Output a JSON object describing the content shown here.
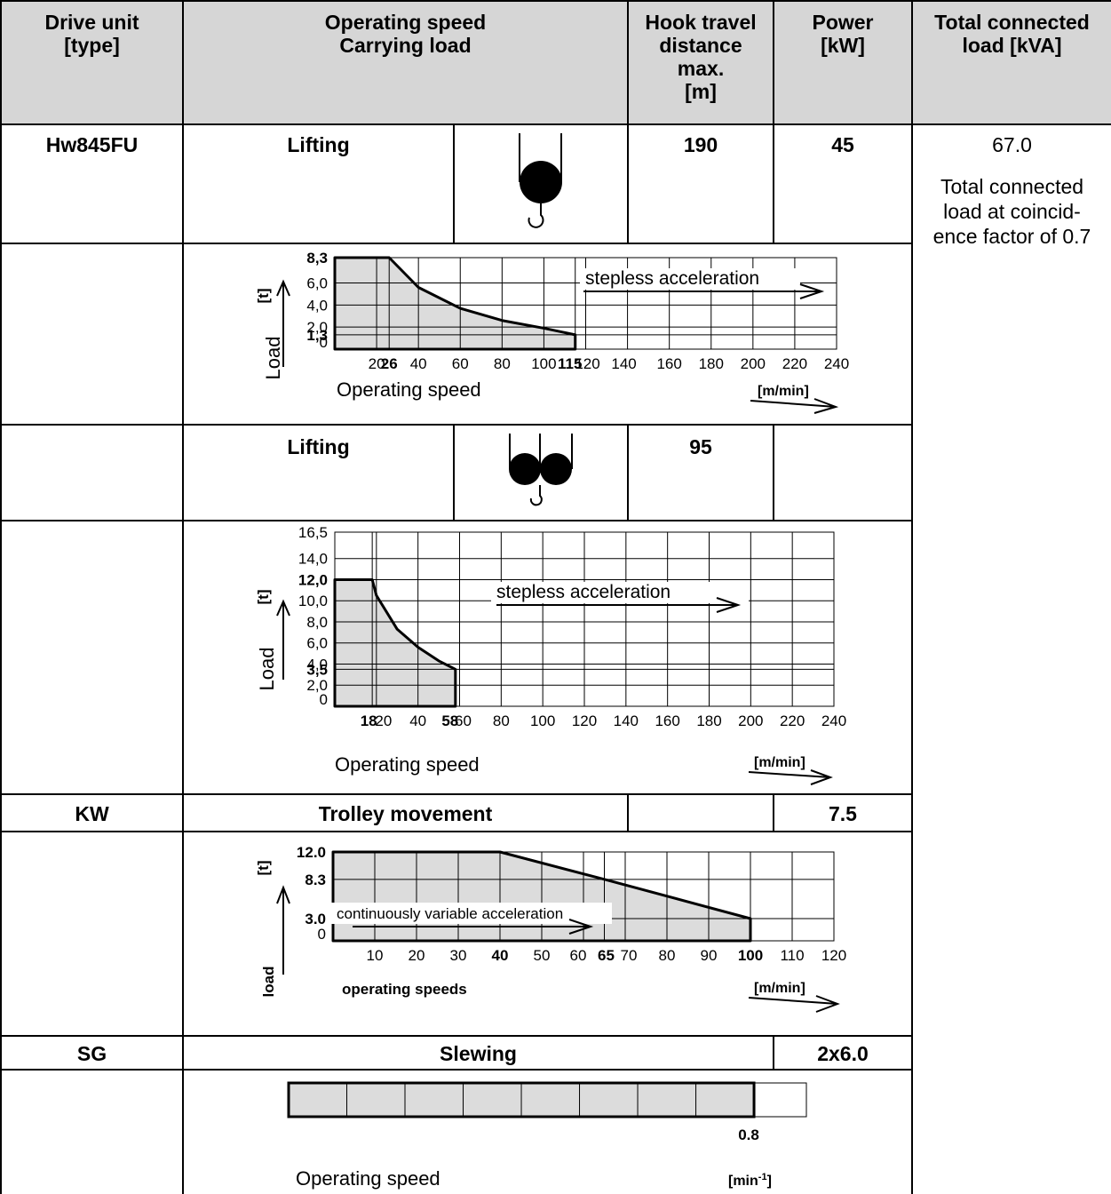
{
  "header": {
    "drive_unit": [
      "Drive unit",
      "[type]"
    ],
    "operating_speed": [
      "Operating speed",
      "Carrying load"
    ],
    "hook_travel": [
      "Hook travel",
      "distance",
      "max.",
      "[m]"
    ],
    "power": [
      "Power",
      "[kW]"
    ],
    "total_load": [
      "Total connected",
      "load [kVA]"
    ]
  },
  "rows": {
    "hw": {
      "type": "Hw845FU",
      "label": "Lifting",
      "hook_travel": "190",
      "power": "45"
    },
    "hw2": {
      "label": "Lifting",
      "hook_travel": "95"
    },
    "kw": {
      "type": "KW",
      "label": "Trolley movement",
      "power": "7.5"
    },
    "sg": {
      "type": "SG",
      "label": "Slewing",
      "power": "2x6.0"
    }
  },
  "total": {
    "value": "67.0",
    "note": [
      "Total connected",
      "load at coincid-",
      "ence factor of 0.7"
    ]
  },
  "icons": [
    "single-hook-icon",
    "double-hook-icon"
  ],
  "chart_data": [
    {
      "type": "area",
      "xlabel": "Operating speed",
      "ylabel": "Load",
      "yunit": "[t]",
      "xunit": "[m/min]",
      "annotation": "stepless acceleration",
      "x_ticks": [
        "20",
        "26",
        "40",
        "60",
        "80",
        "100",
        "115",
        "120",
        "140",
        "160",
        "180",
        "200",
        "220",
        "240"
      ],
      "y_ticks": [
        "0",
        "1,3",
        "2,0",
        "4,0",
        "6,0",
        "8,3"
      ],
      "x": [
        0,
        26,
        40,
        60,
        80,
        100,
        115
      ],
      "y": [
        8.3,
        8.3,
        5.6,
        3.7,
        2.6,
        1.9,
        1.3
      ],
      "xlim": [
        0,
        240
      ],
      "ylim": [
        0,
        8.3
      ]
    },
    {
      "type": "area",
      "xlabel": "Operating speed",
      "ylabel": "Load",
      "yunit": "[t]",
      "xunit": "[m/min]",
      "annotation": "stepless acceleration",
      "x_ticks": [
        "18",
        "20",
        "40",
        "58",
        "60",
        "80",
        "100",
        "120",
        "140",
        "160",
        "180",
        "200",
        "220",
        "240"
      ],
      "y_ticks": [
        "0",
        "2,0",
        "3,5",
        "4,0",
        "6,0",
        "8,0",
        "10,0",
        "12,0",
        "14,0",
        "16,5"
      ],
      "x": [
        0,
        18,
        20,
        30,
        40,
        50,
        58
      ],
      "y": [
        12.0,
        12.0,
        10.5,
        7.3,
        5.6,
        4.3,
        3.5
      ],
      "xlim": [
        0,
        240
      ],
      "ylim": [
        0,
        16.5
      ]
    },
    {
      "type": "area",
      "xlabel": "operating speeds",
      "ylabel": "load",
      "yunit": "[t]",
      "xunit": "[m/min]",
      "annotation": "continuously variable acceleration",
      "x_ticks": [
        "10",
        "20",
        "30",
        "40",
        "50",
        "60",
        "65",
        "70",
        "80",
        "90",
        "100",
        "110",
        "120"
      ],
      "y_ticks": [
        "0",
        "3.0",
        "8.3",
        "12.0"
      ],
      "x": [
        0,
        40,
        65,
        100
      ],
      "y": [
        12.0,
        12.0,
        8.3,
        3.0
      ],
      "xlim": [
        0,
        120
      ],
      "ylim": [
        0,
        12.0
      ]
    },
    {
      "type": "bar",
      "xlabel": "Operating speed",
      "xunit": "[min-1]",
      "value_label": "0.8",
      "values": [
        0.8
      ],
      "xlim": [
        0,
        0.89
      ]
    }
  ]
}
